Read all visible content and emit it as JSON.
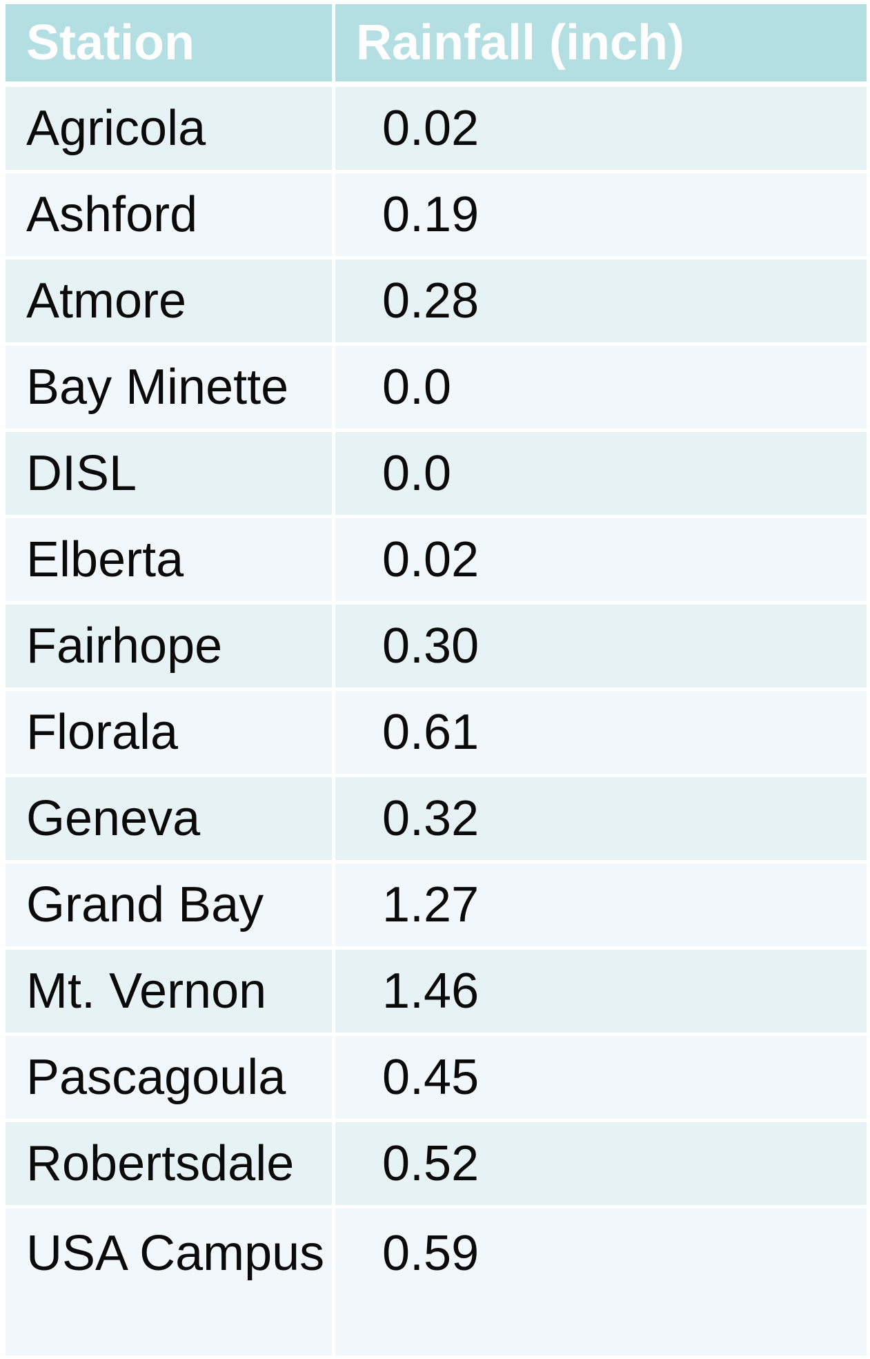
{
  "table": {
    "headers": {
      "station": "Station",
      "rainfall": "Rainfall (inch)"
    },
    "rows": [
      {
        "station": "Agricola",
        "rainfall": "0.02"
      },
      {
        "station": "Ashford",
        "rainfall": "0.19"
      },
      {
        "station": "Atmore",
        "rainfall": "0.28"
      },
      {
        "station": "Bay Minette",
        "rainfall": "0.0"
      },
      {
        "station": "DISL",
        "rainfall": "0.0"
      },
      {
        "station": "Elberta",
        "rainfall": "0.02"
      },
      {
        "station": "Fairhope",
        "rainfall": "0.30"
      },
      {
        "station": "Florala",
        "rainfall": "0.61"
      },
      {
        "station": "Geneva",
        "rainfall": "0.32"
      },
      {
        "station": "Grand Bay",
        "rainfall": "1.27"
      },
      {
        "station": "Mt. Vernon",
        "rainfall": "1.46"
      },
      {
        "station": "Pascagoula",
        "rainfall": "0.45"
      },
      {
        "station": "Robertsdale",
        "rainfall": "0.52"
      },
      {
        "station": "USA Campus",
        "rainfall": "0.59"
      }
    ]
  },
  "colors": {
    "header_bg": "#b3dfe3",
    "row_odd_bg": "#e6f2f4",
    "row_even_bg": "#f1f7fa",
    "text": "#0a0a0a",
    "header_text": "#ffffff"
  }
}
